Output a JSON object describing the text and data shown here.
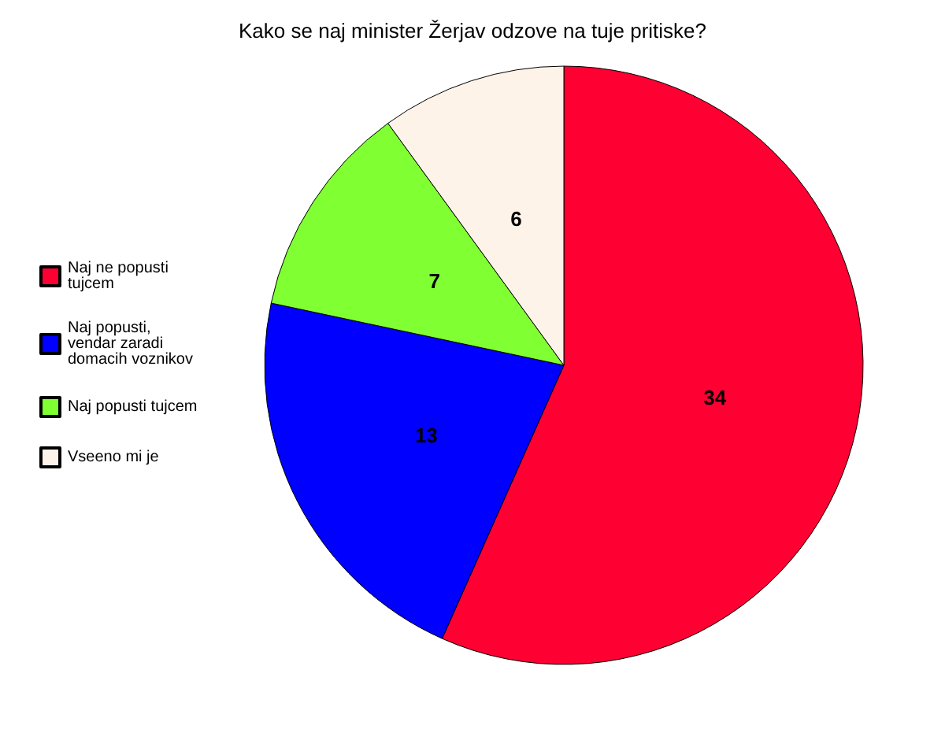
{
  "chart_data": {
    "type": "pie",
    "title": "Kako se naj minister Žerjav odzove na tuje pritiske?",
    "categories": [
      "Naj ne popusti tujcem",
      "Naj popusti, vendar zaradi domacih voznikov",
      "Naj popusti tujcem",
      "Vseeno mi je"
    ],
    "values": [
      34,
      13,
      7,
      6
    ],
    "colors": [
      "#ff0033",
      "#0000ff",
      "#80ff33",
      "#fdf3e8"
    ],
    "data_labels": true,
    "legend": "left"
  }
}
